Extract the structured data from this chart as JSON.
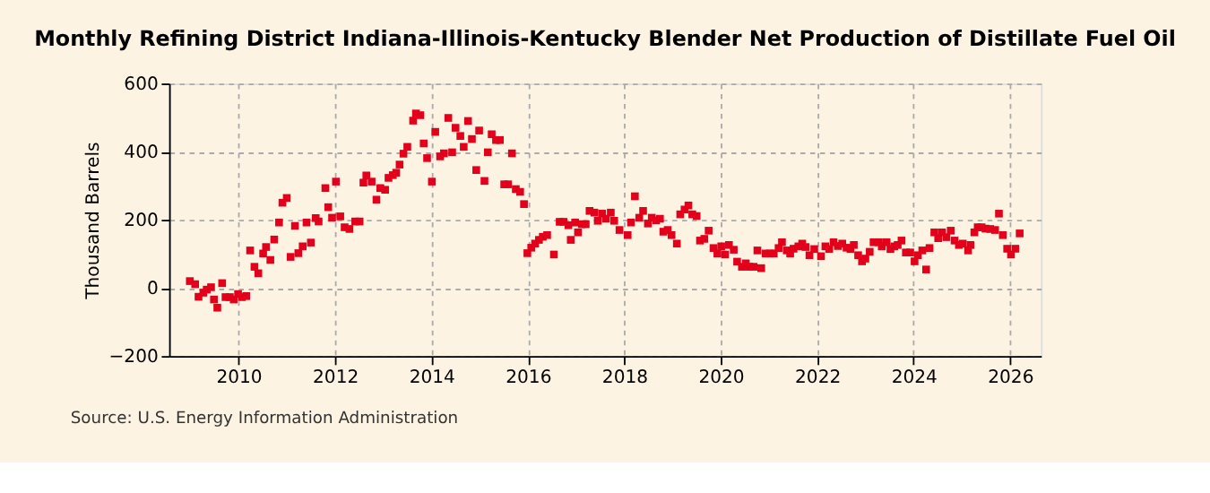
{
  "chart_data": {
    "type": "scatter",
    "title": "Monthly Refining District Indiana-Illinois-Kentucky Blender Net Production of Distillate Fuel Oil",
    "ylabel": "Thousand Barrels",
    "annotations": [
      "Source: U.S. Energy Information Administration"
    ],
    "xlim": [
      2008.56,
      2026.64
    ],
    "xticks": [
      2010,
      2012,
      2014,
      2016,
      2018,
      2020,
      2022,
      2024,
      2026
    ],
    "ylim": [
      -200,
      600
    ],
    "yticks": [
      -200,
      0,
      200,
      400,
      600
    ],
    "grid": true,
    "marker": "square",
    "series": [
      {
        "color": "#e2001a",
        "x": [
          2008.99,
          2009.1,
          2009.17,
          2009.27,
          2009.34,
          2009.43,
          2009.49,
          2009.56,
          2009.66,
          2009.73,
          2009.82,
          2009.9,
          2009.99,
          2010.07,
          2010.16,
          2010.24,
          2010.33,
          2010.41,
          2010.51,
          2010.57,
          2010.66,
          2010.74,
          2010.84,
          2010.91,
          2011.0,
          2011.08,
          2011.17,
          2011.24,
          2011.33,
          2011.41,
          2011.5,
          2011.6,
          2011.66,
          2011.8,
          2011.86,
          2011.94,
          2012.02,
          2012.11,
          2012.2,
          2012.3,
          2012.42,
          2012.51,
          2012.59,
          2012.65,
          2012.76,
          2012.86,
          2012.94,
          2013.04,
          2013.11,
          2013.2,
          2013.27,
          2013.34,
          2013.42,
          2013.5,
          2013.62,
          2013.68,
          2013.77,
          2013.84,
          2013.91,
          2014.01,
          2014.08,
          2014.18,
          2014.26,
          2014.35,
          2014.43,
          2014.5,
          2014.6,
          2014.67,
          2014.76,
          2014.84,
          2014.93,
          2014.99,
          2015.1,
          2015.17,
          2015.25,
          2015.34,
          2015.42,
          2015.51,
          2015.59,
          2015.67,
          2015.75,
          2015.84,
          2015.92,
          2015.99,
          2016.07,
          2016.15,
          2016.23,
          2016.31,
          2016.4,
          2016.54,
          2016.66,
          2016.74,
          2016.84,
          2016.89,
          2016.98,
          2017.04,
          2017.12,
          2017.2,
          2017.28,
          2017.38,
          2017.45,
          2017.54,
          2017.62,
          2017.72,
          2017.79,
          2017.9,
          2018.07,
          2018.14,
          2018.22,
          2018.31,
          2018.39,
          2018.49,
          2018.57,
          2018.66,
          2018.74,
          2018.81,
          2018.9,
          2018.98,
          2019.09,
          2019.16,
          2019.25,
          2019.33,
          2019.41,
          2019.5,
          2019.57,
          2019.66,
          2019.75,
          2019.85,
          2019.93,
          2020.01,
          2020.09,
          2020.17,
          2020.27,
          2020.34,
          2020.44,
          2020.52,
          2020.59,
          2020.68,
          2020.76,
          2020.84,
          2020.93,
          2021.02,
          2021.1,
          2021.2,
          2021.27,
          2021.37,
          2021.44,
          2021.51,
          2021.61,
          2021.69,
          2021.76,
          2021.84,
          2021.94,
          2022.08,
          2022.17,
          2022.25,
          2022.34,
          2022.43,
          2022.52,
          2022.61,
          2022.69,
          2022.76,
          2022.85,
          2022.93,
          2023.0,
          2023.09,
          2023.17,
          2023.28,
          2023.34,
          2023.44,
          2023.52,
          2023.6,
          2023.67,
          2023.75,
          2023.84,
          2023.93,
          2024.02,
          2024.09,
          2024.18,
          2024.26,
          2024.33,
          2024.43,
          2024.51,
          2024.59,
          2024.68,
          2024.77,
          2024.85,
          2024.94,
          2025.02,
          2025.13,
          2025.18,
          2025.26,
          2025.33,
          2025.41,
          2025.49,
          2025.59,
          2025.69,
          2025.77,
          2025.85,
          2025.94,
          2026.02,
          2026.11,
          2026.2
        ],
        "values": [
          20,
          11,
          -26,
          -14,
          -5,
          2,
          -34,
          -58,
          14,
          -27,
          -27,
          -34,
          -18,
          -27,
          -24,
          110,
          62,
          43,
          101,
          120,
          82,
          142,
          192,
          250,
          264,
          91,
          182,
          102,
          122,
          192,
          133,
          205,
          195,
          293,
          237,
          206,
          312,
          210,
          178,
          173,
          195,
          195,
          309,
          330,
          312,
          259,
          293,
          288,
          323,
          331,
          338,
          362,
          394,
          414,
          491,
          512,
          507,
          424,
          381,
          312,
          458,
          386,
          395,
          499,
          398,
          470,
          446,
          414,
          490,
          437,
          346,
          462,
          314,
          398,
          451,
          434,
          434,
          304,
          304,
          395,
          290,
          282,
          246,
          102,
          118,
          130,
          141,
          150,
          155,
          98,
          194,
          194,
          184,
          141,
          192,
          163,
          187,
          187,
          226,
          221,
          197,
          218,
          203,
          221,
          197,
          170,
          155,
          192,
          269,
          206,
          226,
          189,
          206,
          198,
          203,
          165,
          170,
          155,
          130,
          216,
          230,
          242,
          216,
          211,
          139,
          144,
          168,
          117,
          101,
          122,
          98,
          126,
          112,
          77,
          62,
          72,
          62,
          62,
          110,
          58,
          101,
          101,
          101,
          117,
          134,
          110,
          101,
          115,
          122,
          130,
          120,
          96,
          114,
          93,
          122,
          114,
          134,
          123,
          130,
          118,
          114,
          126,
          96,
          78,
          86,
          106,
          134,
          134,
          122,
          134,
          114,
          122,
          126,
          139,
          104,
          104,
          78,
          96,
          110,
          54,
          117,
          163,
          146,
          163,
          149,
          168,
          139,
          126,
          130,
          110,
          126,
          163,
          178,
          178,
          174,
          173,
          170,
          218,
          155,
          115,
          98,
          115,
          160
        ]
      }
    ]
  }
}
